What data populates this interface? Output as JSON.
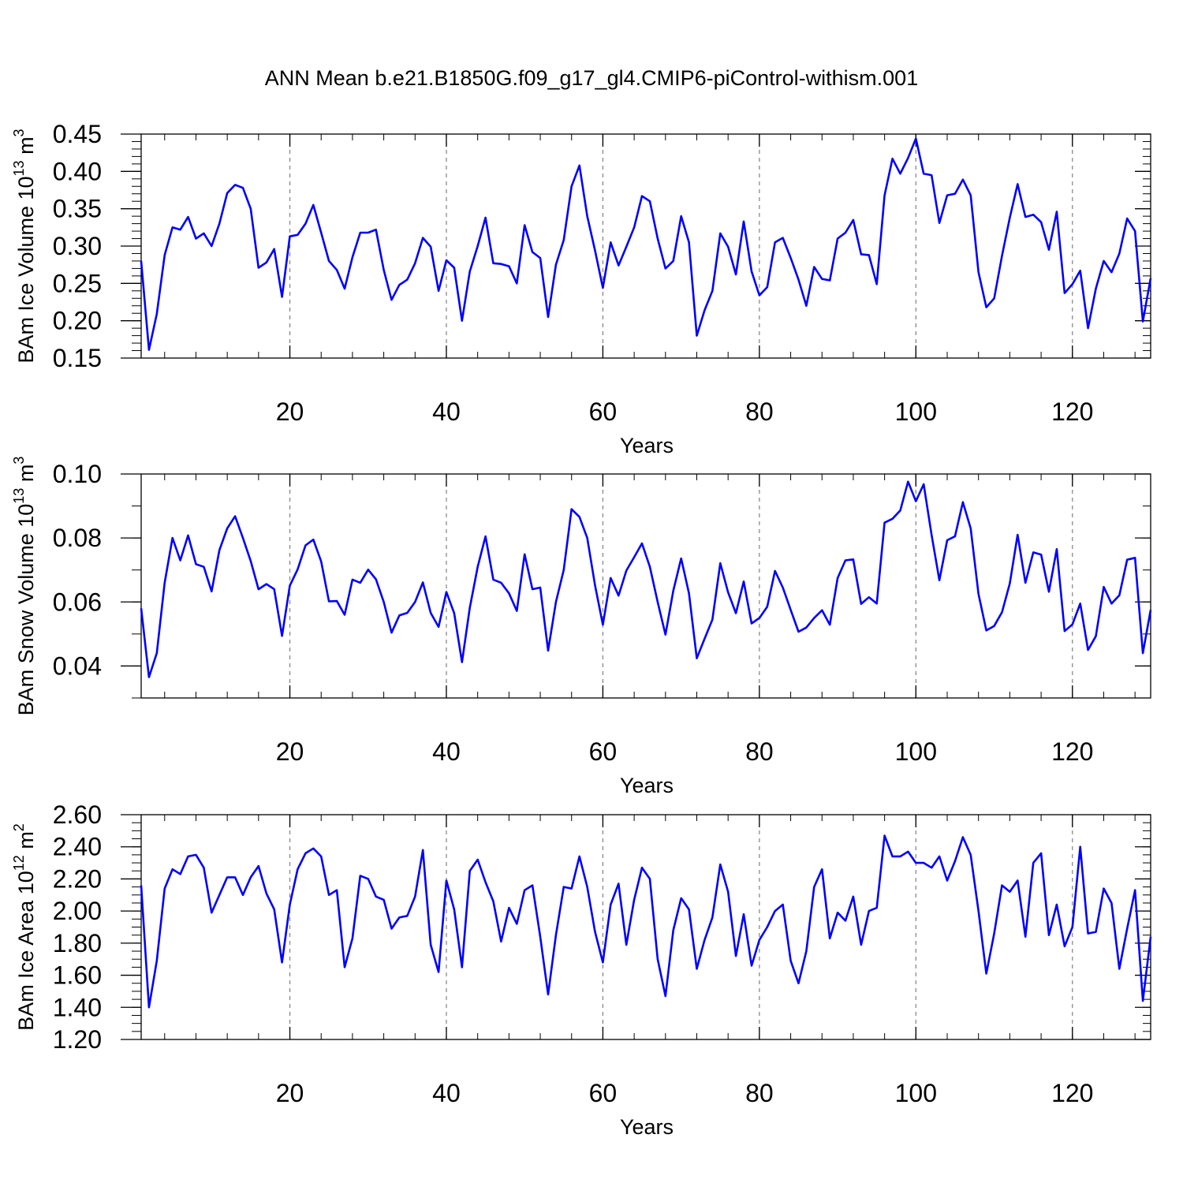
{
  "title": "ANN Mean b.e21.B1850G.f09_g17_gl4.CMIP6-piControl-withism.001",
  "colors": {
    "series": "#0000ff",
    "axis": "#000000",
    "grid": "#808080",
    "background": "#ffffff"
  },
  "chart_data": [
    {
      "type": "line",
      "xlabel": "Years",
      "ylabel": {
        "prefix": "BAm Ice Volume 10",
        "exponent": "13",
        "unit": " m",
        "unit_exponent": "3"
      },
      "xlim": [
        1,
        130
      ],
      "ylim": [
        0.15,
        0.45
      ],
      "xticks": [
        20,
        40,
        60,
        80,
        100,
        120
      ],
      "xtick_labels": [
        "20",
        "40",
        "60",
        "80",
        "100",
        "120"
      ],
      "yticks": [
        0.15,
        0.2,
        0.25,
        0.3,
        0.35,
        0.4,
        0.45
      ],
      "ytick_labels": [
        "0.15",
        "0.20",
        "0.25",
        "0.30",
        "0.35",
        "0.40",
        "0.45"
      ],
      "y_minor_step": 0.01,
      "x_minor_step": 4,
      "grid": "vertical dashed at major x ticks",
      "series": [
        {
          "name": "BAm Ice Volume",
          "x_start": 1,
          "values": [
            0.28,
            0.161,
            0.209,
            0.288,
            0.325,
            0.322,
            0.339,
            0.31,
            0.317,
            0.3,
            0.33,
            0.371,
            0.382,
            0.378,
            0.35,
            0.271,
            0.278,
            0.296,
            0.232,
            0.313,
            0.315,
            0.33,
            0.355,
            0.318,
            0.28,
            0.268,
            0.243,
            0.285,
            0.318,
            0.318,
            0.322,
            0.268,
            0.228,
            0.248,
            0.255,
            0.277,
            0.311,
            0.299,
            0.24,
            0.281,
            0.271,
            0.2,
            0.266,
            0.3,
            0.338,
            0.277,
            0.276,
            0.273,
            0.25,
            0.328,
            0.292,
            0.284,
            0.205,
            0.275,
            0.308,
            0.38,
            0.408,
            0.34,
            0.294,
            0.244,
            0.305,
            0.274,
            0.299,
            0.325,
            0.367,
            0.36,
            0.31,
            0.27,
            0.28,
            0.34,
            0.305,
            0.18,
            0.214,
            0.24,
            0.317,
            0.299,
            0.262,
            0.333,
            0.266,
            0.234,
            0.245,
            0.305,
            0.311,
            0.284,
            0.255,
            0.22,
            0.272,
            0.256,
            0.254,
            0.31,
            0.318,
            0.335,
            0.289,
            0.288,
            0.249,
            0.368,
            0.417,
            0.397,
            0.418,
            0.444,
            0.397,
            0.395,
            0.331,
            0.368,
            0.37,
            0.389,
            0.368,
            0.265,
            0.218,
            0.23,
            0.287,
            0.338,
            0.383,
            0.339,
            0.342,
            0.332,
            0.295,
            0.346,
            0.237,
            0.249,
            0.267,
            0.19,
            0.243,
            0.28,
            0.265,
            0.29,
            0.337,
            0.32,
            0.199,
            0.257
          ]
        }
      ]
    },
    {
      "type": "line",
      "xlabel": "Years",
      "ylabel": {
        "prefix": "BAm Snow Volume 10",
        "exponent": "13",
        "unit": " m",
        "unit_exponent": "3"
      },
      "xlim": [
        1,
        130
      ],
      "ylim": [
        0.03,
        0.1
      ],
      "xticks": [
        20,
        40,
        60,
        80,
        100,
        120
      ],
      "xtick_labels": [
        "20",
        "40",
        "60",
        "80",
        "100",
        "120"
      ],
      "yticks": [
        0.04,
        0.06,
        0.08,
        0.1
      ],
      "ytick_labels": [
        "0.04",
        "0.06",
        "0.08",
        "0.10"
      ],
      "y_minor_step": 0.01,
      "x_minor_step": 4,
      "grid": "vertical dashed at major x ticks",
      "series": [
        {
          "name": "BAm Snow Volume",
          "x_start": 1,
          "values": [
            0.058,
            0.0365,
            0.044,
            0.066,
            0.08,
            0.073,
            0.0808,
            0.0718,
            0.071,
            0.0633,
            0.0762,
            0.083,
            0.0868,
            0.08,
            0.0728,
            0.064,
            0.0656,
            0.064,
            0.0494,
            0.0651,
            0.0702,
            0.0777,
            0.0795,
            0.0727,
            0.0602,
            0.0603,
            0.056,
            0.067,
            0.066,
            0.0701,
            0.0671,
            0.06,
            0.0504,
            0.0558,
            0.0566,
            0.06,
            0.0661,
            0.0566,
            0.0522,
            0.0631,
            0.0565,
            0.0412,
            0.0582,
            0.071,
            0.0805,
            0.067,
            0.066,
            0.0627,
            0.0572,
            0.0749,
            0.064,
            0.0645,
            0.0448,
            0.06,
            0.07,
            0.089,
            0.0866,
            0.08,
            0.0652,
            0.0529,
            0.0675,
            0.062,
            0.0698,
            0.074,
            0.0783,
            0.071,
            0.06,
            0.0498,
            0.0635,
            0.0736,
            0.0627,
            0.0424,
            0.0485,
            0.0545,
            0.0721,
            0.063,
            0.0565,
            0.0664,
            0.0533,
            0.055,
            0.0585,
            0.0697,
            0.0645,
            0.0575,
            0.0507,
            0.052,
            0.055,
            0.0574,
            0.0529,
            0.0675,
            0.073,
            0.0733,
            0.0594,
            0.0615,
            0.0595,
            0.0848,
            0.086,
            0.0886,
            0.0976,
            0.0915,
            0.0968,
            0.081,
            0.0668,
            0.0793,
            0.0805,
            0.0912,
            0.083,
            0.0625,
            0.0511,
            0.0525,
            0.0568,
            0.0658,
            0.081,
            0.066,
            0.0755,
            0.0748,
            0.0632,
            0.0765,
            0.0509,
            0.053,
            0.0595,
            0.045,
            0.0493,
            0.0647,
            0.0595,
            0.0621,
            0.0732,
            0.0738,
            0.044,
            0.0575
          ]
        }
      ]
    },
    {
      "type": "line",
      "xlabel": "Years",
      "ylabel": {
        "prefix": "BAm Ice Area 10",
        "exponent": "12",
        "unit": " m",
        "unit_exponent": "2"
      },
      "xlim": [
        1,
        130
      ],
      "ylim": [
        1.2,
        2.6
      ],
      "xticks": [
        20,
        40,
        60,
        80,
        100,
        120
      ],
      "xtick_labels": [
        "20",
        "40",
        "60",
        "80",
        "100",
        "120"
      ],
      "yticks": [
        1.2,
        1.4,
        1.6,
        1.8,
        2.0,
        2.2,
        2.4,
        2.6
      ],
      "ytick_labels": [
        "1.20",
        "1.40",
        "1.60",
        "1.80",
        "2.00",
        "2.20",
        "2.40",
        "2.60"
      ],
      "y_minor_step": 0.05,
      "x_minor_step": 4,
      "grid": "vertical dashed at major x ticks",
      "series": [
        {
          "name": "BAm Ice Area",
          "x_start": 1,
          "values": [
            2.16,
            1.4,
            1.69,
            2.14,
            2.26,
            2.23,
            2.34,
            2.35,
            2.27,
            1.99,
            2.1,
            2.21,
            2.21,
            2.1,
            2.21,
            2.28,
            2.11,
            2.01,
            1.68,
            2.04,
            2.26,
            2.36,
            2.39,
            2.34,
            2.1,
            2.13,
            1.65,
            1.83,
            2.22,
            2.2,
            2.09,
            2.07,
            1.89,
            1.96,
            1.97,
            2.09,
            2.38,
            1.79,
            1.62,
            2.19,
            2.01,
            1.65,
            2.25,
            2.32,
            2.18,
            2.06,
            1.81,
            2.02,
            1.92,
            2.13,
            2.16,
            1.84,
            1.48,
            1.85,
            2.15,
            2.14,
            2.34,
            2.15,
            1.87,
            1.68,
            2.04,
            2.17,
            1.79,
            2.07,
            2.27,
            2.2,
            1.7,
            1.47,
            1.88,
            2.08,
            2.01,
            1.64,
            1.82,
            1.96,
            2.29,
            2.12,
            1.72,
            1.98,
            1.66,
            1.82,
            1.9,
            2.0,
            2.04,
            1.69,
            1.55,
            1.75,
            2.15,
            2.26,
            1.83,
            1.99,
            1.94,
            2.09,
            1.79,
            2.0,
            2.02,
            2.47,
            2.34,
            2.34,
            2.37,
            2.3,
            2.3,
            2.27,
            2.34,
            2.19,
            2.31,
            2.46,
            2.35,
            2.0,
            1.61,
            1.86,
            2.16,
            2.12,
            2.19,
            1.84,
            2.3,
            2.36,
            1.85,
            2.04,
            1.78,
            1.9,
            2.4,
            1.86,
            1.87,
            2.14,
            2.05,
            1.64,
            1.89,
            2.13,
            1.44,
            1.84
          ]
        }
      ]
    }
  ]
}
